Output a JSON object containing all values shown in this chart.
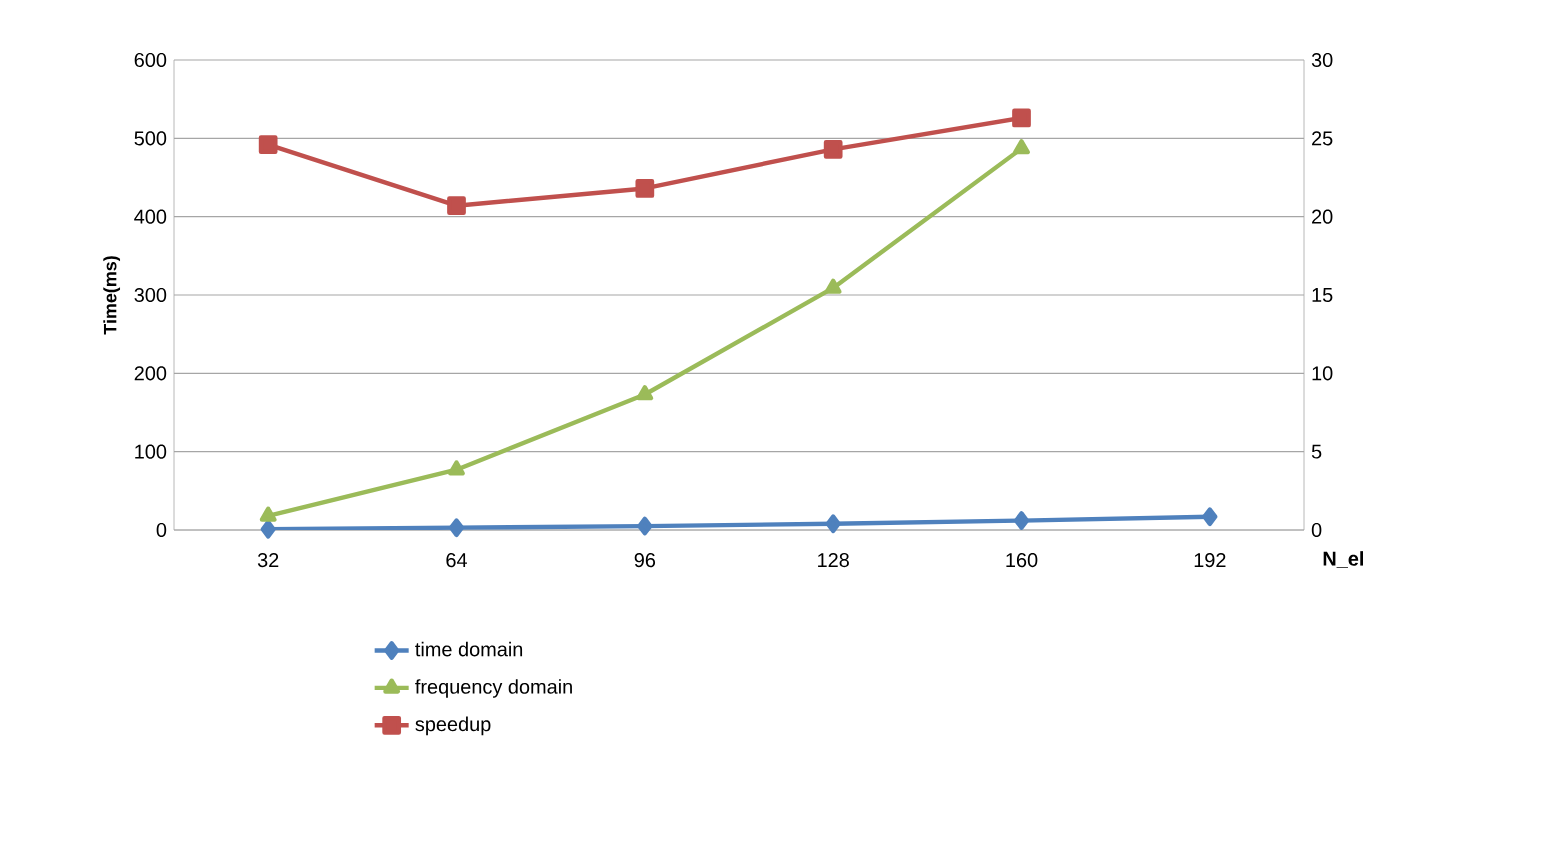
{
  "chart_data": {
    "type": "line",
    "xlabel": "N_el",
    "ylabel": "Time(ms)",
    "categories": [
      "32",
      "64",
      "96",
      "128",
      "160",
      "192"
    ],
    "series": [
      {
        "name": "time domain",
        "color": "#4f81bd",
        "marker": "diamond",
        "values": [
          1,
          3,
          5,
          8,
          12,
          17
        ]
      },
      {
        "name": "frequency domain",
        "color": "#9bbb59",
        "marker": "triangle",
        "values": [
          18,
          77,
          173,
          309,
          487,
          null
        ]
      },
      {
        "name": "speedup",
        "color": "#c0504d",
        "marker": "square",
        "axis": "y2",
        "values": [
          24.6,
          20.7,
          21.8,
          24.3,
          26.3,
          null
        ]
      }
    ],
    "ylim": [
      0,
      600
    ],
    "yticks": [
      0,
      100,
      200,
      300,
      400,
      500,
      600
    ],
    "y2lim": [
      0,
      30
    ],
    "y2ticks": [
      0,
      5,
      10,
      15,
      20,
      25,
      30
    ],
    "grid": "y",
    "legend": "bottom"
  }
}
